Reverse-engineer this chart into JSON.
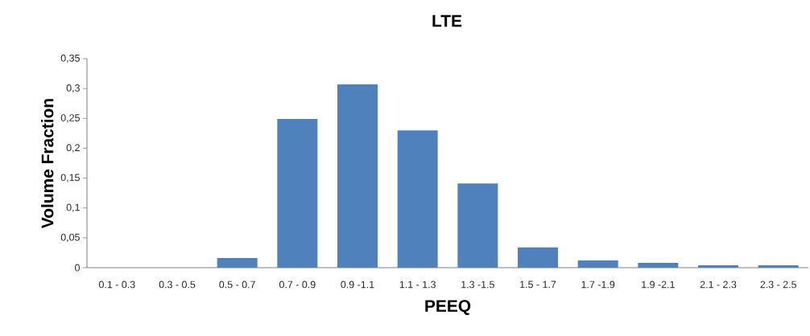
{
  "chart_data": {
    "type": "bar",
    "title": "LTE",
    "xlabel": "PEEQ",
    "ylabel": "Volume Fraction",
    "categories": [
      "0.1 - 0.3",
      "0.3 - 0.5",
      "0.5 - 0.7",
      "0.7 - 0.9",
      "0.9 -1.1",
      "1.1 - 1.3",
      "1.3 -1.5",
      "1.5 - 1.7",
      "1.7 -1.9",
      "1.9 -2.1",
      "2.1 - 2.3",
      "2.3 - 2.5"
    ],
    "values": [
      0,
      0,
      0.016,
      0.249,
      0.307,
      0.23,
      0.141,
      0.034,
      0.012,
      0.008,
      0.004,
      0.004
    ],
    "color": "#4f81bd",
    "ylim": [
      0,
      0.35
    ],
    "yticks": [
      0,
      {
        "value": 0.05,
        "label": "0,05"
      },
      {
        "value": 0.1,
        "label": "0,1"
      },
      {
        "value": 0.15,
        "label": "0,15"
      },
      {
        "value": 0.2,
        "label": "0,2"
      },
      {
        "value": 0.25,
        "label": "0,25"
      },
      {
        "value": 0.3,
        "label": "0,3"
      },
      {
        "value": 0.35,
        "label": "0,35"
      }
    ]
  }
}
